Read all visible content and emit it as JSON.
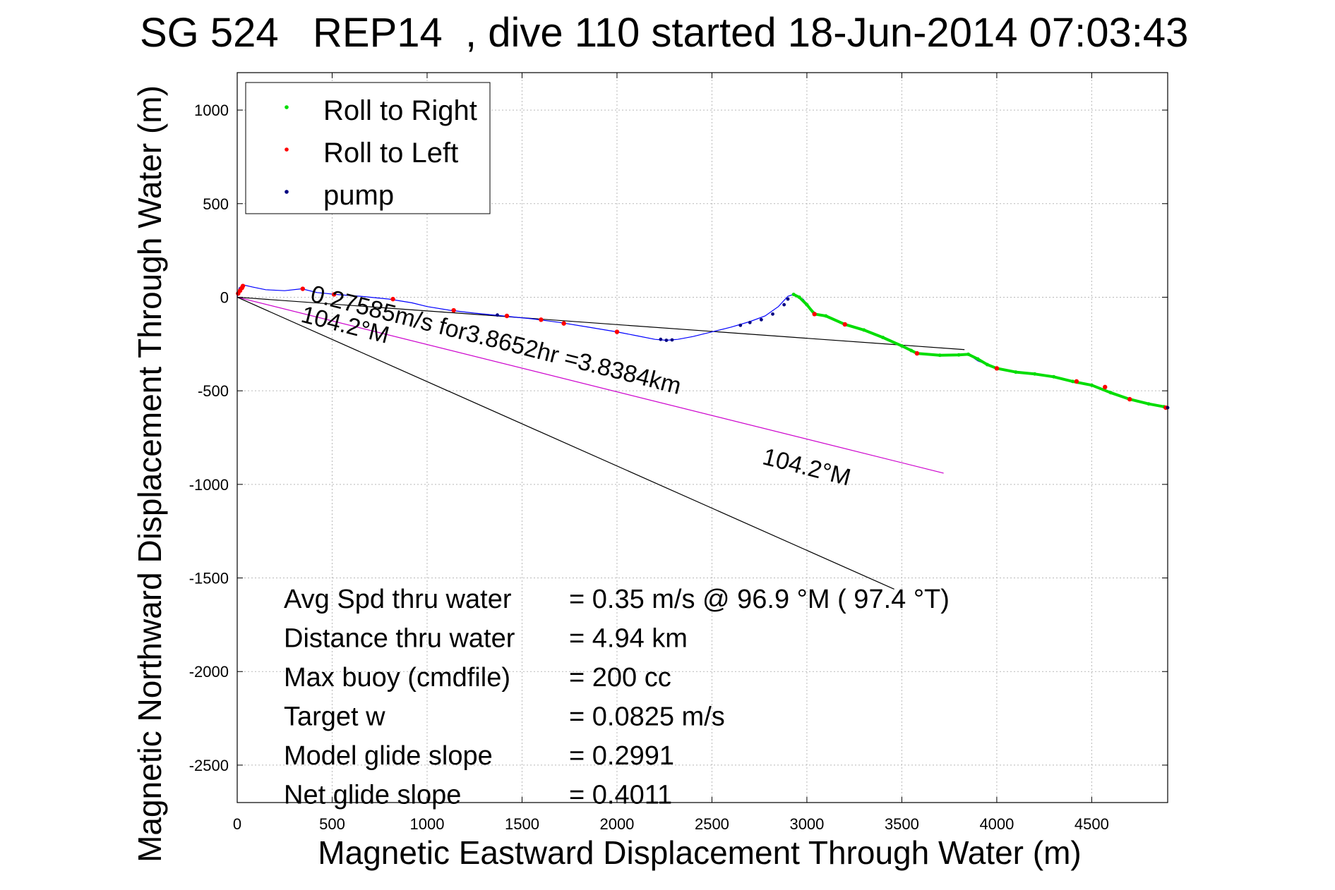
{
  "chart_data": {
    "type": "scatter",
    "title": "SG 524   REP14  , dive 110 started 18-Jun-2014 07:03:43",
    "xlabel": "Magnetic Eastward Displacement Through Water (m)",
    "ylabel": "Magnetic Northward Displacement Through Water (m)",
    "xlim": [
      0,
      4900
    ],
    "ylim": [
      -2700,
      1200
    ],
    "xticks": [
      0,
      500,
      1000,
      1500,
      2000,
      2500,
      3000,
      3500,
      4000,
      4500
    ],
    "yticks": [
      1000,
      500,
      0,
      -500,
      -1000,
      -1500,
      -2000,
      -2500
    ],
    "grid": true,
    "legend_position": "top-left",
    "legend": [
      {
        "label": "Roll to Right",
        "color": "#00dd00"
      },
      {
        "label": "Roll to Left",
        "color": "#ff0000"
      },
      {
        "label": "pump",
        "color": "#000080"
      }
    ],
    "track": {
      "x": [
        0,
        10,
        35,
        80,
        150,
        250,
        340,
        420,
        520,
        650,
        800,
        920,
        1000,
        1120,
        1250,
        1400,
        1550,
        1700,
        1850,
        2000,
        2100,
        2200,
        2260,
        2320,
        2400,
        2500,
        2600,
        2700,
        2780,
        2850,
        2900,
        2930,
        2980,
        3020,
        3050,
        3100,
        3200,
        3300,
        3400,
        3500,
        3580,
        3700,
        3850,
        3900,
        4000,
        4100,
        4200,
        4300,
        4400,
        4500,
        4600,
        4700,
        4800,
        4900
      ],
      "y": [
        0,
        50,
        65,
        55,
        40,
        35,
        45,
        25,
        15,
        5,
        -10,
        -30,
        -50,
        -70,
        -85,
        -100,
        -115,
        -135,
        -160,
        -185,
        -205,
        -225,
        -230,
        -225,
        -210,
        -185,
        -160,
        -130,
        -100,
        -50,
        5,
        15,
        -10,
        -60,
        -90,
        -100,
        -145,
        -175,
        -215,
        -260,
        -300,
        -310,
        -305,
        -340,
        -380,
        -400,
        -410,
        -425,
        -450,
        -470,
        -510,
        -545,
        -570,
        -590
      ],
      "color": "#0000ff"
    },
    "roll_right": {
      "x": [
        2930,
        2960,
        3000,
        3040,
        3100,
        3200,
        3300,
        3400,
        3500,
        3550,
        3580,
        3700,
        3800,
        3850,
        3900,
        3950,
        4000,
        4100,
        4200,
        4300,
        4400,
        4500,
        4600,
        4700,
        4800,
        4880
      ],
      "y": [
        15,
        0,
        -40,
        -90,
        -100,
        -145,
        -175,
        -215,
        -260,
        -285,
        -300,
        -310,
        -308,
        -305,
        -330,
        -360,
        -380,
        -400,
        -410,
        -425,
        -450,
        -470,
        -510,
        -545,
        -570,
        -585
      ],
      "color": "#00dd00"
    },
    "roll_left": {
      "x": [
        5,
        15,
        25,
        30,
        345,
        510,
        820,
        1140,
        1420,
        1600,
        1720,
        2000,
        3040,
        3200,
        3580,
        4000,
        4420,
        4570,
        4700,
        4890
      ],
      "y": [
        20,
        35,
        50,
        60,
        45,
        15,
        -10,
        -70,
        -100,
        -120,
        -140,
        -185,
        -90,
        -145,
        -300,
        -380,
        -450,
        -480,
        -545,
        -590
      ],
      "color": "#ff0000"
    },
    "pump": {
      "x": [
        1370,
        2230,
        2260,
        2290,
        2650,
        2700,
        2760,
        2820,
        2880,
        2900,
        4900
      ],
      "y": [
        -95,
        -225,
        -230,
        -228,
        -150,
        -135,
        -120,
        -90,
        -40,
        -10,
        -590
      ],
      "color": "#000080"
    },
    "reference_lines": [
      {
        "x": [
          0,
          3830
        ],
        "y": [
          0,
          -280
        ],
        "color": "#000000"
      },
      {
        "x": [
          0,
          3720
        ],
        "y": [
          0,
          -940
        ],
        "color": "#cc00cc"
      },
      {
        "x": [
          0,
          3460
        ],
        "y": [
          0,
          -1560
        ],
        "color": "#000000"
      }
    ],
    "annotations": [
      {
        "text": "0.27585m/s for3.8652hr =3.8384km",
        "x": 380,
        "y": -20,
        "rotate": 14.2
      },
      {
        "text": "104.2°M",
        "x": 330,
        "y": -130,
        "rotate": 14.2
      },
      {
        "text": "104.2°M",
        "x": 2760,
        "y": -890,
        "rotate": 14.2
      }
    ],
    "stats": [
      {
        "label": "Avg Spd thru water",
        "value": "=  0.35 m/s @  96.9 °M ( 97.4 °T)"
      },
      {
        "label": "Distance thru water",
        "value": "=  4.94 km"
      },
      {
        "label": "Max buoy (cmdfile)",
        "value": "= 200 cc"
      },
      {
        "label": "Target w",
        "value": "= 0.0825 m/s"
      },
      {
        "label": "Model glide slope",
        "value": "= 0.2991"
      },
      {
        "label": "Net glide slope",
        "value": "= 0.4011"
      }
    ]
  }
}
